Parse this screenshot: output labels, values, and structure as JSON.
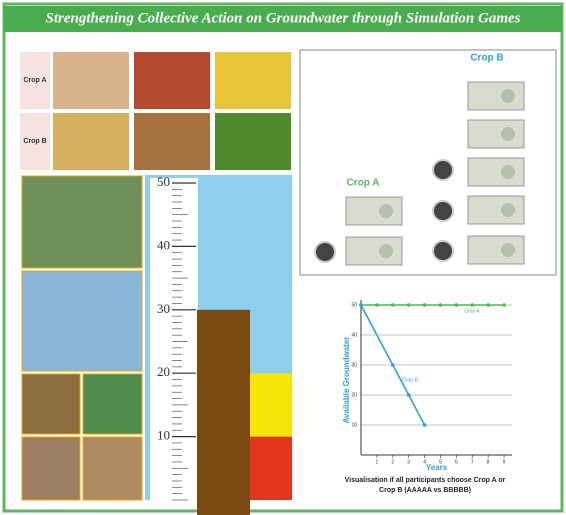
{
  "header": {
    "title": "Strengthening Collective Action on Groundwater through Simulation Games"
  },
  "crops": {
    "rows": [
      {
        "label": "Crop A"
      },
      {
        "label": "Crop B"
      }
    ]
  },
  "gauge": {
    "ylim": [
      0,
      50
    ],
    "yticks": [
      10,
      20,
      30,
      40,
      50
    ],
    "level": 30,
    "zones": [
      {
        "from": 0,
        "to": 10,
        "color": "#e4361f"
      },
      {
        "from": 10,
        "to": 20,
        "color": "#f5e50a"
      },
      {
        "from": 20,
        "to": 50,
        "color": "#8ecfee"
      }
    ]
  },
  "scene": {
    "crop_a": "Crop A",
    "crop_b": "Crop B"
  },
  "chart_data": {
    "type": "line",
    "ylabel": "Available Groundwater",
    "xlabel": "Years",
    "xlim": [
      0,
      9.5
    ],
    "xticks": [
      1,
      2,
      3,
      4,
      5,
      6,
      7,
      8,
      9
    ],
    "ylim": [
      0,
      50
    ],
    "yticks": [
      10,
      20,
      30,
      40,
      50
    ],
    "grid": true,
    "series": [
      {
        "name": "Crop A",
        "color": "#4cb84c",
        "x": [
          0,
          1,
          2,
          3,
          4,
          5,
          6,
          7,
          8,
          9
        ],
        "values": [
          50,
          50,
          50,
          50,
          50,
          50,
          50,
          50,
          50,
          50
        ]
      },
      {
        "name": "Crop B",
        "color": "#2ea3d6",
        "x": [
          0,
          2,
          3,
          4
        ],
        "values": [
          50,
          30,
          20,
          10
        ]
      }
    ],
    "caption": "Visualisation if all participants choose Crop A or Crop B (AAAAA vs BBBBB)"
  }
}
